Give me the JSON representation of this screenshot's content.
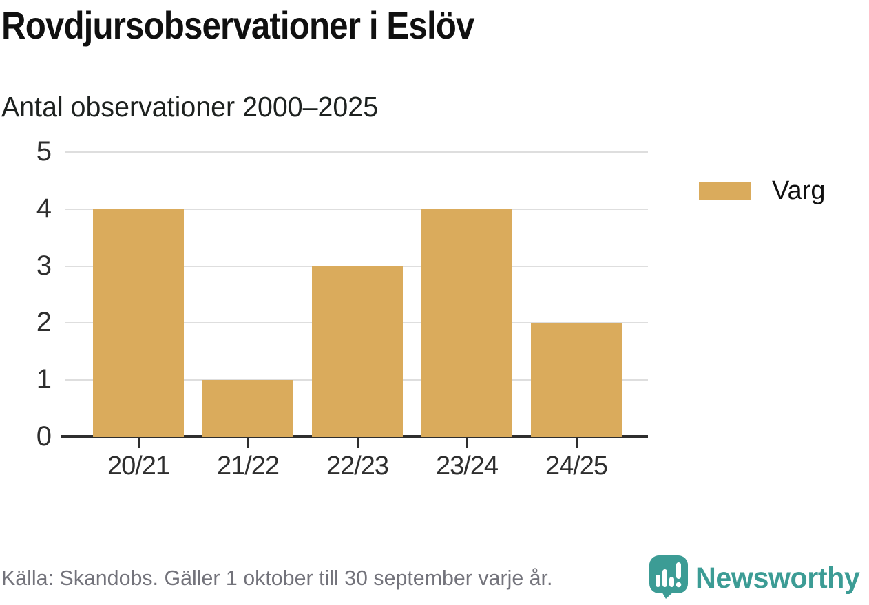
{
  "chart_data": {
    "type": "bar",
    "title": "Rovdjursobservationer i Eslöv",
    "subtitle": "Antal observationer 2000–2025",
    "categories": [
      "20/21",
      "21/22",
      "22/23",
      "23/24",
      "24/25"
    ],
    "series": [
      {
        "name": "Varg",
        "color": "#daab5c",
        "values": [
          4,
          1,
          3,
          4,
          2
        ]
      }
    ],
    "ylim": [
      0,
      5
    ],
    "yticks": [
      0,
      1,
      2,
      3,
      4,
      5
    ],
    "grid": true,
    "legend_position": "right",
    "gridline_color": "#dedede",
    "axis_color": "#2e2e2e"
  },
  "footer": {
    "source": "Källa: Skandobs. Gäller 1 oktober till 30 september varje år.",
    "brand": "Newsworthy",
    "brand_color": "#3c9c95"
  }
}
